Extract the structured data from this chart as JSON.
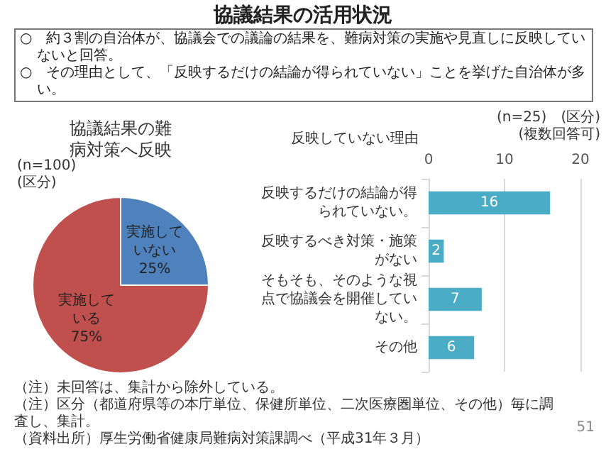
{
  "chart_data": [
    {
      "type": "other",
      "title": "協議結果の活用状況",
      "annotations": [
        "○　約３割の自治体が、協議会での議論の結果を、難病対策の実施や見直しに反映していないと回答。",
        "○　その理由として、「反映するだけの結論が得られていない」ことを挙げた自治体が多い。",
        "（注）未回答は、集計から除外している。",
        "（注）区分（都道府県等の本庁単位、保健所単位、二次医療圏単位、その他）毎に調査し、集計。",
        "（資料出所）厚生労働省健康局難病対策課調べ（平成31年３月）",
        "51"
      ]
    },
    {
      "type": "pie",
      "title": "協議結果の難病対策へ反映",
      "annotations": [
        "(n=100)",
        "(区分)"
      ],
      "categories": [
        "実施していない",
        "実施している"
      ],
      "values": [
        25,
        75
      ],
      "colors": [
        "#4f81bd",
        "#c0504d"
      ],
      "value_labels": [
        "25%",
        "75%"
      ],
      "legend": false
    },
    {
      "type": "bar",
      "orientation": "horizontal",
      "title": "反映していない理由",
      "annotations": [
        "(n=25)　(区分)",
        "(複数回答可)"
      ],
      "categories": [
        "反映するだけの結論が得られていない。",
        "反映するべき対策・施策がない",
        "そもそも、そのような視点で協議会を開催していない。",
        "その他"
      ],
      "values": [
        16,
        2,
        7,
        6
      ],
      "color": "#4bacc6",
      "xlim": [
        0,
        20
      ],
      "xticks": [
        0,
        10,
        20
      ],
      "grid": "x",
      "data_labels": true,
      "legend": false
    }
  ]
}
